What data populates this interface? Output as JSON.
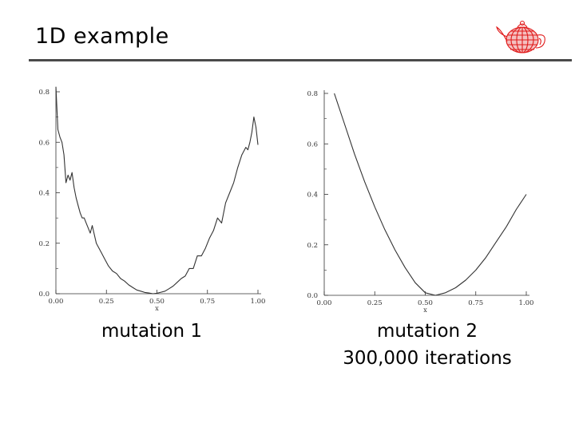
{
  "slide": {
    "title": "1D example"
  },
  "logo": {
    "icon": "wireframe-teapot-icon",
    "color": "#e01818"
  },
  "captions": {
    "left": "mutation 1",
    "right_line1": "mutation 2",
    "right_line2": "300,000 iterations"
  },
  "chart_data": [
    {
      "type": "line",
      "xlabel": "x",
      "ylabel": "",
      "xlim": [
        0,
        1
      ],
      "ylim": [
        0,
        0.8
      ],
      "xticks": [
        "0.00",
        "0.25",
        "0.50",
        "0.75",
        "1.00"
      ],
      "yticks": [
        "0.0",
        "0.2",
        "0.4",
        "0.6",
        "0.8"
      ],
      "line_color": "#333333",
      "series": [
        {
          "x": [
            0.0,
            0.01,
            0.02,
            0.03,
            0.04,
            0.05,
            0.06,
            0.07,
            0.08,
            0.09,
            0.1,
            0.11,
            0.12,
            0.13,
            0.14,
            0.15,
            0.16,
            0.17,
            0.18,
            0.2,
            0.22,
            0.24,
            0.26,
            0.28,
            0.3,
            0.32,
            0.34,
            0.36,
            0.38,
            0.4,
            0.42,
            0.44,
            0.46,
            0.48,
            0.5,
            0.52,
            0.54,
            0.56,
            0.58,
            0.6,
            0.62,
            0.64,
            0.66,
            0.68,
            0.7,
            0.72,
            0.74,
            0.76,
            0.78,
            0.8,
            0.82,
            0.84,
            0.86,
            0.88,
            0.9,
            0.92,
            0.94,
            0.95,
            0.96,
            0.97,
            0.98,
            0.99,
            1.0
          ],
          "y": [
            0.82,
            0.65,
            0.62,
            0.6,
            0.55,
            0.44,
            0.47,
            0.45,
            0.48,
            0.42,
            0.38,
            0.35,
            0.32,
            0.3,
            0.3,
            0.28,
            0.26,
            0.24,
            0.27,
            0.2,
            0.17,
            0.14,
            0.11,
            0.09,
            0.08,
            0.06,
            0.05,
            0.035,
            0.025,
            0.015,
            0.01,
            0.005,
            0.003,
            0.0,
            0.002,
            0.006,
            0.01,
            0.02,
            0.03,
            0.045,
            0.06,
            0.07,
            0.1,
            0.1,
            0.15,
            0.15,
            0.18,
            0.22,
            0.25,
            0.3,
            0.28,
            0.36,
            0.4,
            0.44,
            0.5,
            0.55,
            0.58,
            0.57,
            0.6,
            0.64,
            0.7,
            0.66,
            0.59
          ]
        }
      ]
    },
    {
      "type": "line",
      "xlabel": "x",
      "ylabel": "",
      "xlim": [
        0,
        1
      ],
      "ylim": [
        0,
        0.8
      ],
      "xticks": [
        "0.00",
        "0.25",
        "0.50",
        "0.75",
        "1.00"
      ],
      "yticks": [
        "0.0",
        "0.2",
        "0.4",
        "0.6",
        "0.8"
      ],
      "line_color": "#333333",
      "series": [
        {
          "x": [
            0.05,
            0.1,
            0.15,
            0.2,
            0.25,
            0.3,
            0.35,
            0.4,
            0.45,
            0.5,
            0.55,
            0.6,
            0.65,
            0.7,
            0.75,
            0.8,
            0.85,
            0.9,
            0.95,
            1.0
          ],
          "y": [
            0.8,
            0.68,
            0.56,
            0.45,
            0.35,
            0.26,
            0.18,
            0.11,
            0.05,
            0.01,
            0.0,
            0.01,
            0.03,
            0.06,
            0.1,
            0.15,
            0.21,
            0.27,
            0.34,
            0.4
          ]
        }
      ]
    }
  ]
}
